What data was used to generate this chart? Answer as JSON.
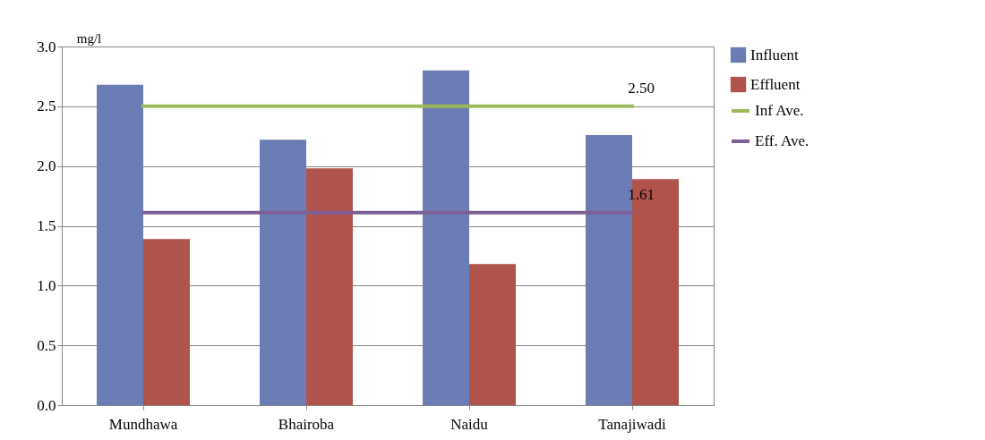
{
  "chart_data": {
    "type": "bar",
    "ylabel": "mg/l",
    "categories": [
      "Mundhawa",
      "Bhairoba",
      "Naidu",
      "Tanajiwadi"
    ],
    "series": [
      {
        "name": "Influent",
        "color": "#6a7db4",
        "values": [
          2.68,
          2.22,
          2.8,
          2.26
        ]
      },
      {
        "name": "Effluent",
        "color": "#b0544b",
        "values": [
          1.39,
          1.98,
          1.18,
          1.89
        ]
      },
      {
        "name": "Inf Ave.",
        "type": "line",
        "color": "#9bbb59",
        "values": [
          2.5,
          2.5,
          2.5,
          2.5
        ]
      },
      {
        "name": "Eff. Ave.",
        "type": "line",
        "color": "#7d5f96",
        "values": [
          1.61,
          1.61,
          1.61,
          1.61
        ]
      }
    ],
    "annotations": [
      {
        "text": "2.50",
        "x": "Tanajiwadi",
        "y": 2.5
      },
      {
        "text": "1.61",
        "x": "Tanajiwadi",
        "y": 1.61
      }
    ],
    "ylim": [
      0,
      3
    ],
    "yticks": [
      {
        "value": 0,
        "label": "0.0"
      },
      0.5,
      {
        "value": 1,
        "label": "1.0"
      },
      1.5,
      {
        "value": 2,
        "label": "2.0"
      },
      2.5,
      {
        "value": 3,
        "label": "3.0"
      }
    ],
    "grid": "y",
    "legend": "right"
  }
}
